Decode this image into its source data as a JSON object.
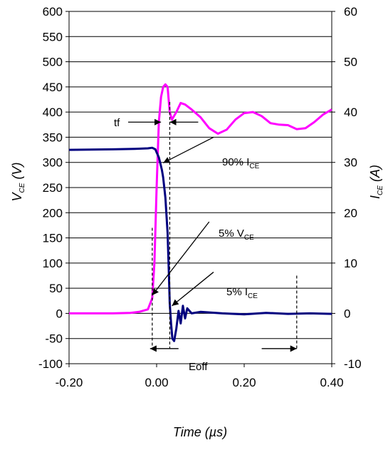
{
  "chart_data": {
    "type": "line",
    "title": "",
    "xlabel": "Time (µs)",
    "ylabel_left": "V",
    "ylabel_left_sub": "CE",
    "ylabel_left_unit": " (V)",
    "ylabel_right": "I",
    "ylabel_right_sub": "CE",
    "ylabel_right_unit": " (A)",
    "xlim": [
      -0.2,
      0.4
    ],
    "ylim_left": [
      -100,
      600
    ],
    "ylim_right": [
      -10,
      60
    ],
    "grid": "horizontal",
    "x_ticks": [
      "-0.20",
      "0.00",
      "0.20",
      "0.40"
    ],
    "y_left_ticks": [
      "-100",
      "-50",
      "0",
      "50",
      "100",
      "150",
      "200",
      "250",
      "300",
      "350",
      "400",
      "450",
      "500",
      "550",
      "600"
    ],
    "y_right_ticks": [
      "-10",
      "0",
      "10",
      "20",
      "30",
      "40",
      "50",
      "60"
    ],
    "series": [
      {
        "axis": "left",
        "color": "#ff00ff",
        "points": [
          [
            -0.2,
            0
          ],
          [
            -0.15,
            0
          ],
          [
            -0.1,
            0
          ],
          [
            -0.06,
            1
          ],
          [
            -0.04,
            3
          ],
          [
            -0.02,
            8
          ],
          [
            -0.01,
            30
          ],
          [
            -0.005,
            100
          ],
          [
            0.0,
            250
          ],
          [
            0.005,
            380
          ],
          [
            0.01,
            430
          ],
          [
            0.015,
            450
          ],
          [
            0.02,
            455
          ],
          [
            0.025,
            450
          ],
          [
            0.03,
            400
          ],
          [
            0.035,
            385
          ],
          [
            0.045,
            400
          ],
          [
            0.055,
            418
          ],
          [
            0.065,
            415
          ],
          [
            0.08,
            405
          ],
          [
            0.1,
            390
          ],
          [
            0.12,
            368
          ],
          [
            0.14,
            357
          ],
          [
            0.16,
            365
          ],
          [
            0.18,
            385
          ],
          [
            0.2,
            398
          ],
          [
            0.22,
            400
          ],
          [
            0.24,
            392
          ],
          [
            0.26,
            378
          ],
          [
            0.28,
            375
          ],
          [
            0.3,
            374
          ],
          [
            0.32,
            366
          ],
          [
            0.34,
            368
          ],
          [
            0.36,
            380
          ],
          [
            0.38,
            395
          ],
          [
            0.4,
            405
          ]
        ]
      },
      {
        "axis": "right",
        "color": "#00007f",
        "points": [
          [
            -0.2,
            32.5
          ],
          [
            -0.1,
            32.6
          ],
          [
            -0.05,
            32.7
          ],
          [
            -0.02,
            32.8
          ],
          [
            -0.01,
            32.9
          ],
          [
            -0.003,
            32.6
          ],
          [
            0.0,
            32.0
          ],
          [
            0.005,
            31.0
          ],
          [
            0.008,
            30.0
          ],
          [
            0.012,
            28.5
          ],
          [
            0.015,
            27.0
          ],
          [
            0.02,
            23.0
          ],
          [
            0.025,
            16.0
          ],
          [
            0.028,
            8.0
          ],
          [
            0.03,
            2.0
          ],
          [
            0.033,
            -2.0
          ],
          [
            0.036,
            -5.0
          ],
          [
            0.04,
            -5.5
          ],
          [
            0.045,
            -3.0
          ],
          [
            0.05,
            0.5
          ],
          [
            0.055,
            -2.0
          ],
          [
            0.06,
            1.5
          ],
          [
            0.065,
            -1.0
          ],
          [
            0.07,
            1.0
          ],
          [
            0.08,
            0.0
          ],
          [
            0.1,
            0.3
          ],
          [
            0.15,
            0.0
          ],
          [
            0.2,
            -0.2
          ],
          [
            0.25,
            0.1
          ],
          [
            0.3,
            -0.1
          ],
          [
            0.35,
            0.0
          ],
          [
            0.4,
            -0.1
          ]
        ]
      }
    ],
    "annotations": {
      "tf": "tf",
      "i90_prefix": "90% I",
      "i90_sub": "CE",
      "v5_prefix": "5% V",
      "v5_sub": "CE",
      "i5_prefix": "5% I",
      "i5_sub": "CE",
      "eoff": "Eoff"
    }
  }
}
